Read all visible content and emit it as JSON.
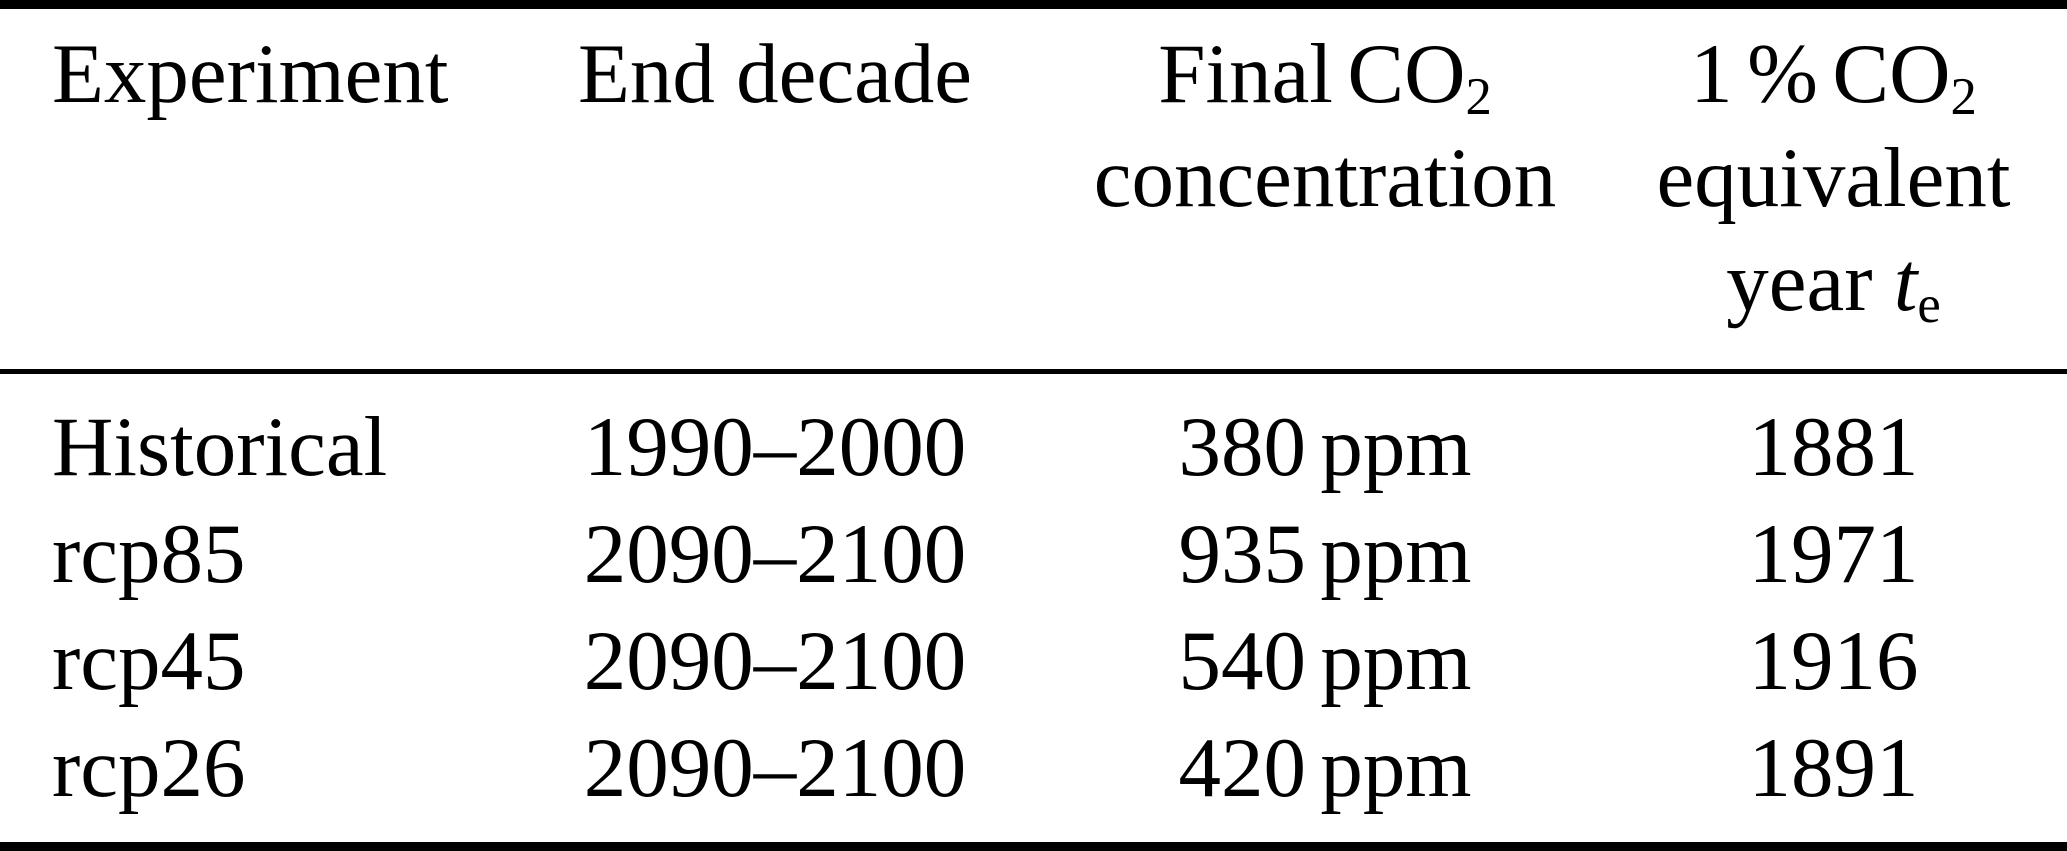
{
  "colors": {
    "background": "#ffffff",
    "text": "#000000",
    "rule": "#000000"
  },
  "table": {
    "columns": [
      {
        "key": "experiment",
        "header": {
          "line1": "Experiment"
        }
      },
      {
        "key": "end_decade",
        "header": {
          "line1": "End decade"
        }
      },
      {
        "key": "final_co2",
        "header": {
          "line1_text": "Final CO",
          "line1_sub": "2",
          "line2": "concentration"
        }
      },
      {
        "key": "equivalent_year",
        "header": {
          "line1_text": "1 % CO",
          "line1_sub": "2",
          "line2": "equivalent",
          "line3_text": "year ",
          "line3_var": "t",
          "line3_sub": "e"
        }
      }
    ],
    "rows": [
      {
        "experiment": "Historical",
        "end_decade": "1990–2000",
        "final_co2": "380 ppm",
        "equivalent_year": "1881"
      },
      {
        "experiment": "rcp85",
        "end_decade": "2090–2100",
        "final_co2": "935 ppm",
        "equivalent_year": "1971"
      },
      {
        "experiment": "rcp45",
        "end_decade": "2090–2100",
        "final_co2": "540 ppm",
        "equivalent_year": "1916"
      },
      {
        "experiment": "rcp26",
        "end_decade": "2090–2100",
        "final_co2": "420 ppm",
        "equivalent_year": "1891"
      }
    ]
  },
  "chart_data": {
    "type": "table",
    "title": "",
    "columns": [
      "Experiment",
      "End decade",
      "Final CO2 concentration",
      "1 % CO2 equivalent year te"
    ],
    "rows": [
      [
        "Historical",
        "1990–2000",
        "380 ppm",
        1881
      ],
      [
        "rcp85",
        "2090–2100",
        "935 ppm",
        1971
      ],
      [
        "rcp45",
        "2090–2100",
        "540 ppm",
        1916
      ],
      [
        "rcp26",
        "2090–2100",
        "420 ppm",
        1891
      ]
    ]
  }
}
